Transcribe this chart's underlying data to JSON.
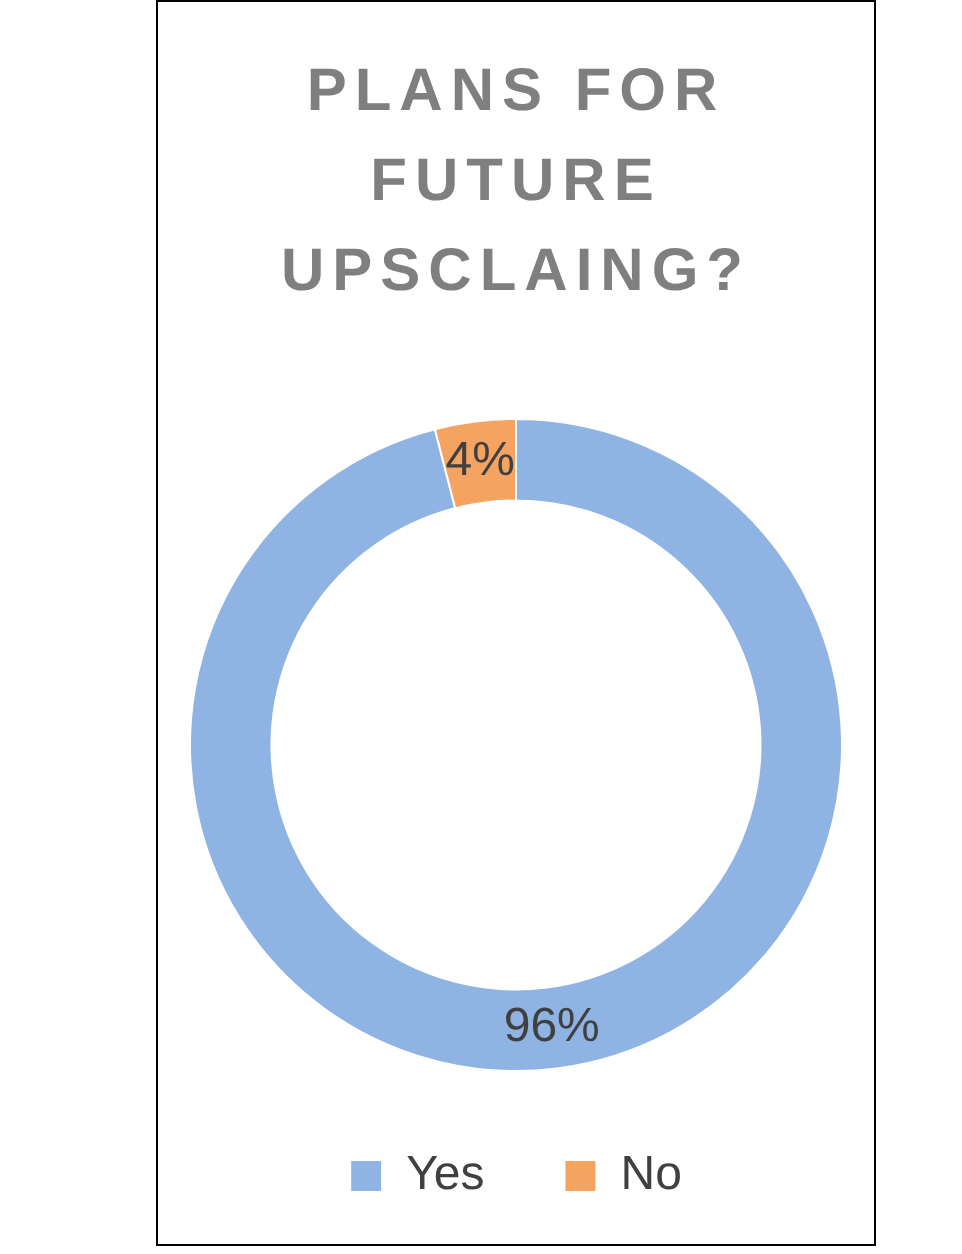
{
  "chart_data": {
    "type": "donut",
    "title": "PLANS FOR FUTURE UPSCLAING?",
    "categories": [
      "Yes",
      "No"
    ],
    "values": [
      96,
      4
    ],
    "colors": [
      "#8fb4e3",
      "#f4a460"
    ],
    "value_labels": [
      "96%",
      "4%"
    ],
    "legend": "bottom"
  }
}
